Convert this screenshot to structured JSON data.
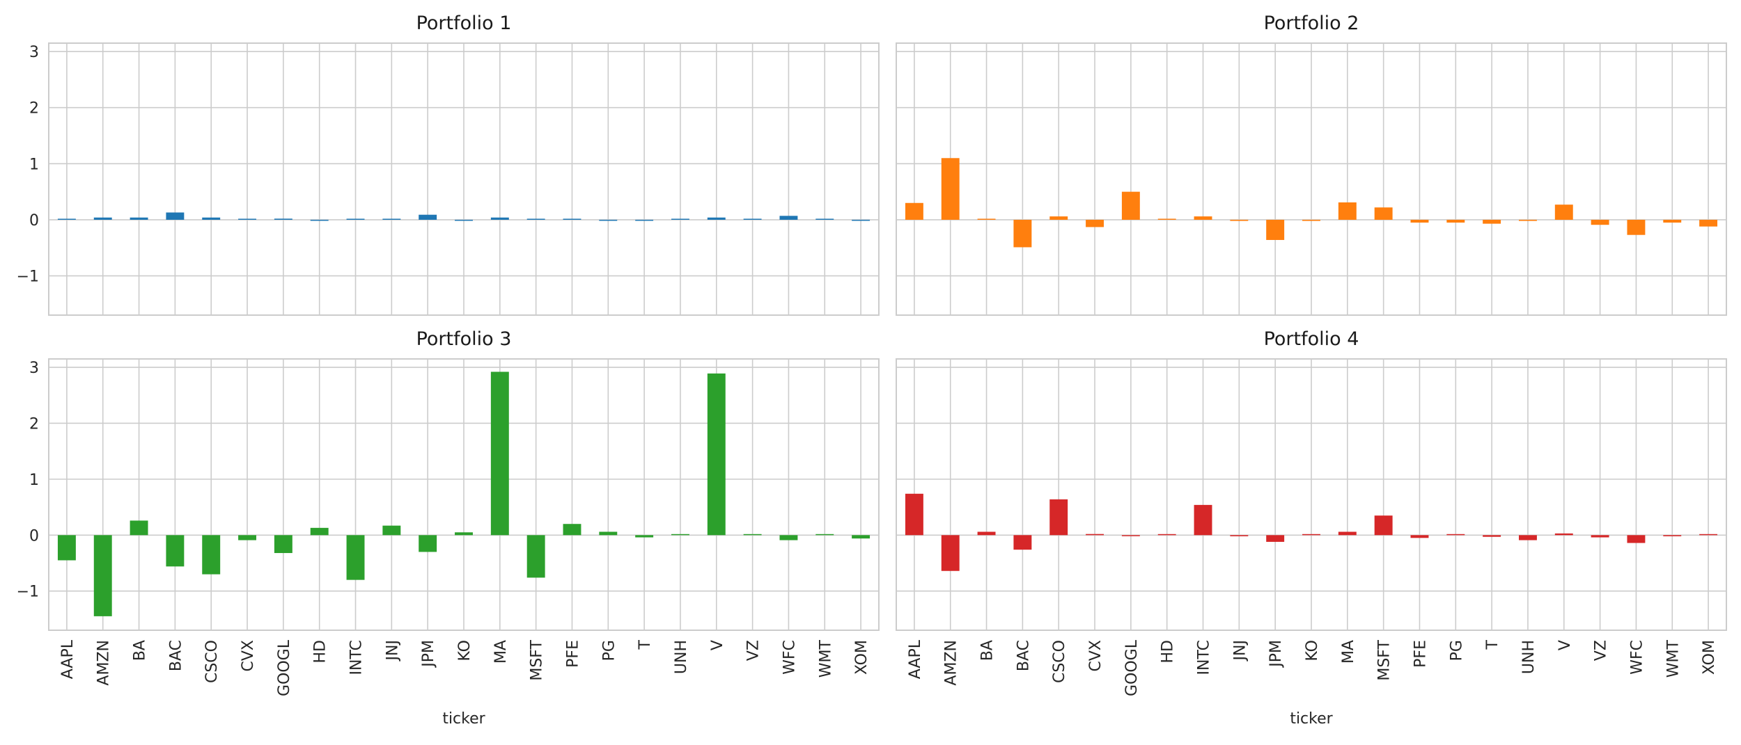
{
  "chart_data": [
    {
      "type": "bar",
      "title": "Portfolio 1",
      "xlabel": "",
      "ylabel": "",
      "color": "#1f77b4",
      "ylim": [
        -1.7,
        3.15
      ],
      "yticks": [
        -1,
        0,
        1,
        2,
        3
      ],
      "grid": true,
      "categories": [
        "AAPL",
        "AMZN",
        "BA",
        "BAC",
        "CSCO",
        "CVX",
        "GOOGL",
        "HD",
        "INTC",
        "JNJ",
        "JPM",
        "KO",
        "MA",
        "MSFT",
        "PFE",
        "PG",
        "T",
        "UNH",
        "V",
        "VZ",
        "WFC",
        "WMT",
        "XOM"
      ],
      "values": [
        0.01,
        0.04,
        0.04,
        0.13,
        0.04,
        0.01,
        0.02,
        -0.01,
        0.01,
        0.0,
        0.09,
        -0.01,
        0.04,
        0.01,
        0.0,
        -0.01,
        -0.01,
        0.01,
        0.04,
        0.0,
        0.07,
        0.0,
        -0.01
      ]
    },
    {
      "type": "bar",
      "title": "Portfolio 2",
      "xlabel": "",
      "ylabel": "",
      "color": "#ff7f0e",
      "ylim": [
        -1.7,
        3.15
      ],
      "yticks": [
        -1,
        0,
        1,
        2,
        3
      ],
      "grid": true,
      "categories": [
        "AAPL",
        "AMZN",
        "BA",
        "BAC",
        "CSCO",
        "CVX",
        "GOOGL",
        "HD",
        "INTC",
        "JNJ",
        "JPM",
        "KO",
        "MA",
        "MSFT",
        "PFE",
        "PG",
        "T",
        "UNH",
        "V",
        "VZ",
        "WFC",
        "WMT",
        "XOM"
      ],
      "values": [
        0.3,
        1.1,
        0.0,
        -0.49,
        0.06,
        -0.13,
        0.5,
        0.0,
        0.06,
        -0.02,
        -0.36,
        -0.02,
        0.31,
        0.22,
        -0.05,
        -0.05,
        -0.07,
        -0.02,
        0.27,
        -0.09,
        -0.27,
        -0.05,
        -0.12
      ]
    },
    {
      "type": "bar",
      "title": "Portfolio 3",
      "xlabel": "ticker",
      "ylabel": "",
      "color": "#2ca02c",
      "ylim": [
        -1.7,
        3.15
      ],
      "yticks": [
        -1,
        0,
        1,
        2,
        3
      ],
      "grid": true,
      "categories": [
        "AAPL",
        "AMZN",
        "BA",
        "BAC",
        "CSCO",
        "CVX",
        "GOOGL",
        "HD",
        "INTC",
        "JNJ",
        "JPM",
        "KO",
        "MA",
        "MSFT",
        "PFE",
        "PG",
        "T",
        "UNH",
        "V",
        "VZ",
        "WFC",
        "WMT",
        "XOM"
      ],
      "values": [
        -0.45,
        -1.45,
        0.26,
        -0.56,
        -0.7,
        -0.09,
        -0.32,
        0.13,
        -0.8,
        0.17,
        -0.3,
        0.05,
        2.92,
        -0.76,
        0.2,
        0.06,
        -0.04,
        0.01,
        2.89,
        0.0,
        -0.09,
        0.0,
        -0.06
      ]
    },
    {
      "type": "bar",
      "title": "Portfolio 4",
      "xlabel": "ticker",
      "ylabel": "",
      "color": "#d62728",
      "ylim": [
        -1.7,
        3.15
      ],
      "yticks": [
        -1,
        0,
        1,
        2,
        3
      ],
      "grid": true,
      "categories": [
        "AAPL",
        "AMZN",
        "BA",
        "BAC",
        "CSCO",
        "CVX",
        "GOOGL",
        "HD",
        "INTC",
        "JNJ",
        "JPM",
        "KO",
        "MA",
        "MSFT",
        "PFE",
        "PG",
        "T",
        "UNH",
        "V",
        "VZ",
        "WFC",
        "WMT",
        "XOM"
      ],
      "values": [
        0.74,
        -0.64,
        0.06,
        -0.26,
        0.64,
        0.02,
        -0.01,
        0.0,
        0.54,
        -0.02,
        -0.12,
        0.0,
        0.06,
        0.35,
        -0.05,
        0.0,
        -0.03,
        -0.09,
        0.03,
        -0.04,
        -0.14,
        -0.02,
        0.0
      ]
    }
  ]
}
